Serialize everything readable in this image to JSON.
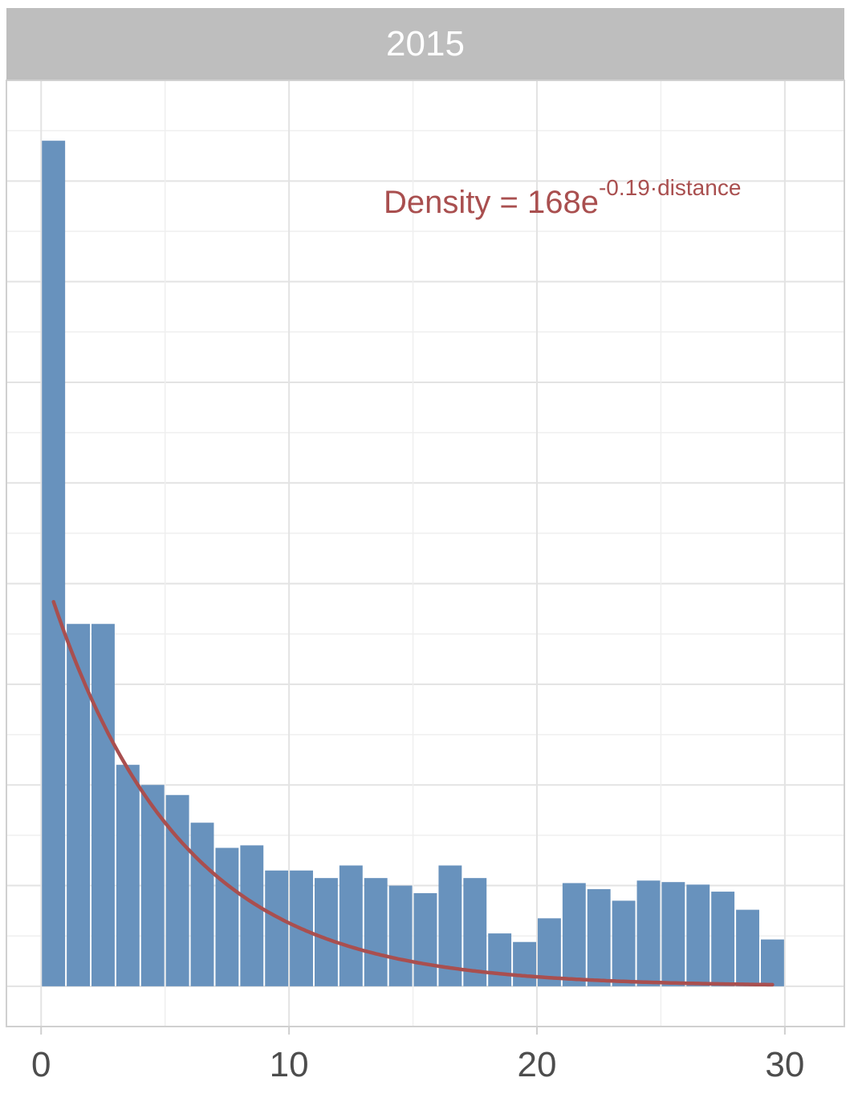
{
  "panel": {
    "strip_label": "2015"
  },
  "annotation": {
    "prefix": "Density = 168e",
    "exponent": "-0.19·distance",
    "color": "#a94f4f"
  },
  "chart_data": {
    "type": "bar",
    "bin_width": 1,
    "bins": [
      0,
      1,
      2,
      3,
      4,
      5,
      6,
      7,
      8,
      9,
      10,
      11,
      12,
      13,
      14,
      15,
      16,
      17,
      18,
      19,
      20,
      21,
      22,
      23,
      24,
      25,
      26,
      27,
      28,
      29
    ],
    "values": [
      168,
      72,
      72,
      44,
      40,
      38,
      32.5,
      27.5,
      28,
      23,
      23,
      21.5,
      24,
      21.5,
      20,
      18.5,
      24,
      21.5,
      10.5,
      8.8,
      13.5,
      20.5,
      19.3,
      17,
      21,
      20.7,
      20.2,
      18.8,
      15.2,
      9.3
    ],
    "xticks": [
      0,
      10,
      20,
      30
    ],
    "xlim": [
      -1.4,
      32.4
    ],
    "ylim": [
      -8,
      180
    ],
    "y_gridlines": [
      0,
      20,
      40,
      60,
      80,
      100,
      120,
      140,
      160
    ],
    "grid": true,
    "bar_color": "#6892bd",
    "fit_curve": {
      "a": 168,
      "b": -0.19,
      "x_start": 0.5,
      "x_end": 29.5,
      "color": "#a94f4f"
    }
  }
}
